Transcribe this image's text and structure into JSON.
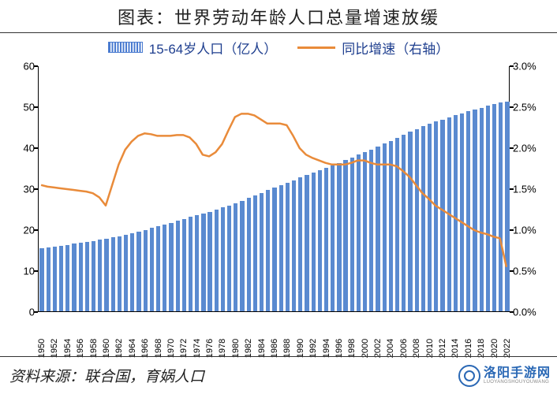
{
  "title": "图表：世界劳动年龄人口总量增速放缓",
  "legend": {
    "bars": "15-64岁人口（亿人）",
    "line": "同比增速（右轴）"
  },
  "source": "资料来源：联合国，育娲人口",
  "watermark": {
    "name": "洛阳手游网",
    "url": "LUOYANGSHOUYOUWANG"
  },
  "chart": {
    "type": "bar+line-dual-axis",
    "background_color": "#ffffff",
    "bar_color": "#5a8ad0",
    "line_color": "#e98b3a",
    "line_width": 2.5,
    "axis_color": "#000000",
    "tick_font_size": 13,
    "xtick_font_size": 11,
    "xtick_rotation": -90,
    "left_axis": {
      "min": 0,
      "max": 60,
      "ticks": [
        0,
        10,
        20,
        30,
        40,
        50,
        60
      ]
    },
    "right_axis": {
      "min": 0.0,
      "max": 3.0,
      "ticks": [
        0.0,
        0.5,
        1.0,
        1.5,
        2.0,
        2.5,
        3.0
      ],
      "suffix": "%",
      "decimals": 1
    },
    "years": [
      1950,
      1951,
      1952,
      1953,
      1954,
      1955,
      1956,
      1957,
      1958,
      1959,
      1960,
      1961,
      1962,
      1963,
      1964,
      1965,
      1966,
      1967,
      1968,
      1969,
      1970,
      1971,
      1972,
      1973,
      1974,
      1975,
      1976,
      1977,
      1978,
      1979,
      1980,
      1981,
      1982,
      1983,
      1984,
      1985,
      1986,
      1987,
      1988,
      1989,
      1990,
      1991,
      1992,
      1993,
      1994,
      1995,
      1996,
      1997,
      1998,
      1999,
      2000,
      2001,
      2002,
      2003,
      2004,
      2005,
      2006,
      2007,
      2008,
      2009,
      2010,
      2011,
      2012,
      2013,
      2014,
      2015,
      2016,
      2017,
      2018,
      2019,
      2020,
      2021,
      2022
    ],
    "x_labels_shown": [
      1950,
      1952,
      1954,
      1956,
      1958,
      1960,
      1962,
      1964,
      1966,
      1968,
      1970,
      1972,
      1974,
      1976,
      1978,
      1980,
      1982,
      1984,
      1986,
      1988,
      1990,
      1992,
      1994,
      1996,
      1998,
      2000,
      2002,
      2004,
      2006,
      2008,
      2010,
      2012,
      2014,
      2016,
      2018,
      2020,
      2022
    ],
    "bar_values": [
      15.4,
      15.6,
      15.8,
      16.0,
      16.2,
      16.5,
      16.7,
      17.0,
      17.2,
      17.5,
      17.7,
      18.0,
      18.3,
      18.7,
      19.1,
      19.5,
      19.9,
      20.3,
      20.7,
      21.2,
      21.6,
      22.1,
      22.5,
      23.0,
      23.4,
      23.9,
      24.3,
      24.8,
      25.3,
      25.8,
      26.4,
      27.0,
      27.6,
      28.3,
      28.9,
      29.6,
      30.2,
      30.8,
      31.4,
      32.0,
      32.6,
      33.2,
      33.8,
      34.4,
      35.0,
      35.6,
      36.2,
      36.9,
      37.5,
      38.2,
      38.8,
      39.5,
      40.2,
      40.9,
      41.6,
      42.4,
      43.1,
      43.8,
      44.5,
      45.1,
      45.7,
      46.3,
      46.8,
      47.3,
      47.8,
      48.3,
      48.8,
      49.2,
      49.7,
      50.1,
      50.5,
      50.9,
      51.2
    ],
    "line_values": [
      1.55,
      1.53,
      1.52,
      1.51,
      1.5,
      1.49,
      1.48,
      1.47,
      1.45,
      1.4,
      1.3,
      1.55,
      1.8,
      1.98,
      2.08,
      2.15,
      2.18,
      2.17,
      2.15,
      2.15,
      2.15,
      2.16,
      2.16,
      2.13,
      2.05,
      1.92,
      1.9,
      1.95,
      2.05,
      2.22,
      2.38,
      2.42,
      2.42,
      2.4,
      2.35,
      2.3,
      2.3,
      2.3,
      2.28,
      2.15,
      2.0,
      1.92,
      1.88,
      1.85,
      1.82,
      1.8,
      1.8,
      1.8,
      1.82,
      1.85,
      1.85,
      1.82,
      1.8,
      1.8,
      1.8,
      1.78,
      1.72,
      1.65,
      1.55,
      1.45,
      1.38,
      1.3,
      1.25,
      1.2,
      1.15,
      1.1,
      1.05,
      1.0,
      0.97,
      0.95,
      0.92,
      0.9,
      0.55
    ]
  }
}
